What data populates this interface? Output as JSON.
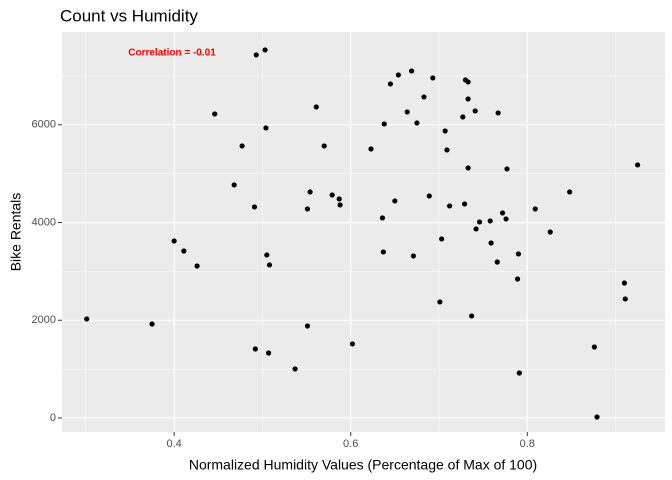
{
  "chart_data": {
    "type": "scatter",
    "title": "Count vs Humidity",
    "x_label": "Normalized Humidity Values (Percentage of Max of 100)",
    "y_label": "Bike Rentals",
    "annotation": "Correlation = -0.01",
    "color": "#000000",
    "grid": true,
    "xlim": [
      0.273,
      0.956
    ],
    "xticks": [
      0.4,
      0.6,
      0.8
    ],
    "ylim": [
      -287,
      7900
    ],
    "yticks": [
      0,
      2000,
      4000,
      6000
    ],
    "x": [
      0.301,
      0.375,
      0.4,
      0.411,
      0.426,
      0.446,
      0.468,
      0.477,
      0.491,
      0.492,
      0.493,
      0.503,
      0.504,
      0.505,
      0.508,
      0.507,
      0.537,
      0.551,
      0.551,
      0.554,
      0.561,
      0.57,
      0.579,
      0.587,
      0.588,
      0.602,
      0.623,
      0.636,
      0.638,
      0.637,
      0.645,
      0.65,
      0.654,
      0.664,
      0.669,
      0.671,
      0.675,
      0.683,
      0.689,
      0.693,
      0.701,
      0.703,
      0.707,
      0.709,
      0.712,
      0.727,
      0.729,
      0.73,
      0.733,
      0.733,
      0.733,
      0.737,
      0.741,
      0.742,
      0.746,
      0.758,
      0.759,
      0.766,
      0.767,
      0.772,
      0.776,
      0.777,
      0.789,
      0.79,
      0.791,
      0.809,
      0.826,
      0.848,
      0.876,
      0.879,
      0.91,
      0.911,
      0.925
    ],
    "values": [
      2027,
      1924,
      3623,
      3418,
      3111,
      6223,
      4770,
      5568,
      4319,
      1412,
      7431,
      7533,
      5936,
      3337,
      3132,
      1330,
      1003,
      4278,
      1883,
      4626,
      6366,
      5568,
      4565,
      4483,
      4360,
      1515,
      5506,
      4094,
      6018,
      3398,
      6837,
      4442,
      7021,
      6264,
      7103,
      3316,
      6039,
      6571,
      4544,
      6960,
      2375,
      3664,
      5875,
      5486,
      4340,
      6161,
      4381,
      6919,
      6530,
      6878,
      5118,
      2088,
      6284,
      3869,
      4012,
      4033,
      3582,
      3193,
      6243,
      4196,
      4074,
      5097,
      2845,
      3357,
      921,
      4278,
      3807,
      4626,
      1453,
      20,
      2763,
      2436,
      5179
    ]
  }
}
